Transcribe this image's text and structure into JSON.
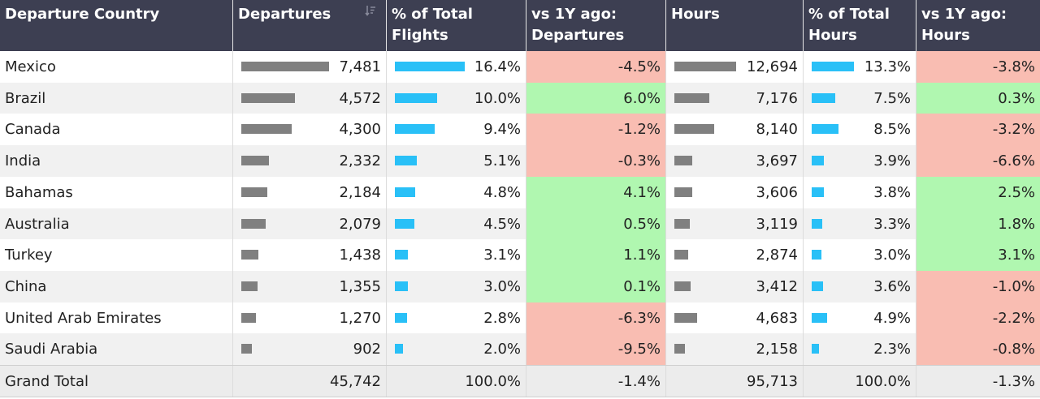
{
  "header": {
    "country": "Departure Country",
    "departures": "Departures",
    "pct_flights_1": "% of Total",
    "pct_flights_2": "Flights",
    "vs_dep_1": "vs 1Y ago:",
    "vs_dep_2": "Departures",
    "hours": "Hours",
    "pct_hours_1": "% of Total",
    "pct_hours_2": "Hours",
    "vs_hours_1": "vs 1Y ago:",
    "vs_hours_2": "Hours"
  },
  "colors": {
    "header_bg": "#3d3f52",
    "bar_gray": "#808080",
    "bar_blue": "#29c0f7",
    "positive": "#b0f7b0",
    "negative": "#f9bdb2"
  },
  "chart_data": {
    "type": "table",
    "columns": [
      "Departure Country",
      "Departures",
      "% of Total Flights",
      "vs 1Y ago: Departures",
      "Hours",
      "% of Total Hours",
      "vs 1Y ago: Hours"
    ],
    "rows": [
      {
        "country": "Mexico",
        "departures": 7481,
        "departures_label": "7,481",
        "pct_flights": 16.4,
        "pct_flights_label": "16.4%",
        "vs_dep": -4.5,
        "vs_dep_label": "-4.5%",
        "hours": 12694,
        "hours_label": "12,694",
        "pct_hours": 13.3,
        "pct_hours_label": "13.3%",
        "vs_hours": -3.8,
        "vs_hours_label": "-3.8%"
      },
      {
        "country": "Brazil",
        "departures": 4572,
        "departures_label": "4,572",
        "pct_flights": 10.0,
        "pct_flights_label": "10.0%",
        "vs_dep": 6.0,
        "vs_dep_label": "6.0%",
        "hours": 7176,
        "hours_label": "7,176",
        "pct_hours": 7.5,
        "pct_hours_label": "7.5%",
        "vs_hours": 0.3,
        "vs_hours_label": "0.3%"
      },
      {
        "country": "Canada",
        "departures": 4300,
        "departures_label": "4,300",
        "pct_flights": 9.4,
        "pct_flights_label": "9.4%",
        "vs_dep": -1.2,
        "vs_dep_label": "-1.2%",
        "hours": 8140,
        "hours_label": "8,140",
        "pct_hours": 8.5,
        "pct_hours_label": "8.5%",
        "vs_hours": -3.2,
        "vs_hours_label": "-3.2%"
      },
      {
        "country": "India",
        "departures": 2332,
        "departures_label": "2,332",
        "pct_flights": 5.1,
        "pct_flights_label": "5.1%",
        "vs_dep": -0.3,
        "vs_dep_label": "-0.3%",
        "hours": 3697,
        "hours_label": "3,697",
        "pct_hours": 3.9,
        "pct_hours_label": "3.9%",
        "vs_hours": -6.6,
        "vs_hours_label": "-6.6%"
      },
      {
        "country": "Bahamas",
        "departures": 2184,
        "departures_label": "2,184",
        "pct_flights": 4.8,
        "pct_flights_label": "4.8%",
        "vs_dep": 4.1,
        "vs_dep_label": "4.1%",
        "hours": 3606,
        "hours_label": "3,606",
        "pct_hours": 3.8,
        "pct_hours_label": "3.8%",
        "vs_hours": 2.5,
        "vs_hours_label": "2.5%"
      },
      {
        "country": "Australia",
        "departures": 2079,
        "departures_label": "2,079",
        "pct_flights": 4.5,
        "pct_flights_label": "4.5%",
        "vs_dep": 0.5,
        "vs_dep_label": "0.5%",
        "hours": 3119,
        "hours_label": "3,119",
        "pct_hours": 3.3,
        "pct_hours_label": "3.3%",
        "vs_hours": 1.8,
        "vs_hours_label": "1.8%"
      },
      {
        "country": "Turkey",
        "departures": 1438,
        "departures_label": "1,438",
        "pct_flights": 3.1,
        "pct_flights_label": "3.1%",
        "vs_dep": 1.1,
        "vs_dep_label": "1.1%",
        "hours": 2874,
        "hours_label": "2,874",
        "pct_hours": 3.0,
        "pct_hours_label": "3.0%",
        "vs_hours": 3.1,
        "vs_hours_label": "3.1%"
      },
      {
        "country": "China",
        "departures": 1355,
        "departures_label": "1,355",
        "pct_flights": 3.0,
        "pct_flights_label": "3.0%",
        "vs_dep": 0.1,
        "vs_dep_label": "0.1%",
        "hours": 3412,
        "hours_label": "3,412",
        "pct_hours": 3.6,
        "pct_hours_label": "3.6%",
        "vs_hours": -1.0,
        "vs_hours_label": "-1.0%"
      },
      {
        "country": "United Arab Emirates",
        "departures": 1270,
        "departures_label": "1,270",
        "pct_flights": 2.8,
        "pct_flights_label": "2.8%",
        "vs_dep": -6.3,
        "vs_dep_label": "-6.3%",
        "hours": 4683,
        "hours_label": "4,683",
        "pct_hours": 4.9,
        "pct_hours_label": "4.9%",
        "vs_hours": -2.2,
        "vs_hours_label": "-2.2%"
      },
      {
        "country": "Saudi Arabia",
        "departures": 902,
        "departures_label": "902",
        "pct_flights": 2.0,
        "pct_flights_label": "2.0%",
        "vs_dep": -9.5,
        "vs_dep_label": "-9.5%",
        "hours": 2158,
        "hours_label": "2,158",
        "pct_hours": 2.3,
        "pct_hours_label": "2.3%",
        "vs_hours": -0.8,
        "vs_hours_label": "-0.8%"
      }
    ],
    "grand_total": {
      "label": "Grand Total",
      "departures_label": "45,742",
      "pct_flights_label": "100.0%",
      "vs_dep_label": "-1.4%",
      "hours_label": "95,713",
      "pct_hours_label": "100.0%",
      "vs_hours_label": "-1.3%"
    }
  }
}
